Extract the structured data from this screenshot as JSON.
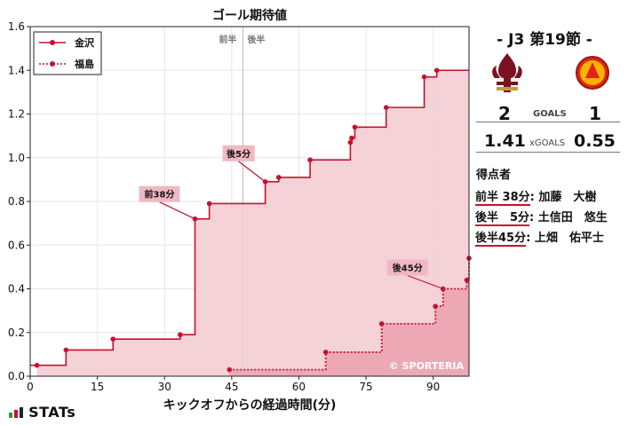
{
  "chart_data": {
    "type": "line",
    "title": "ゴール期待値",
    "xlabel": "キックオフからの経過時間(分)",
    "ylabel": "",
    "xlim": [
      0,
      98
    ],
    "ylim": [
      0,
      1.6
    ],
    "x_ticks": [
      0,
      15,
      30,
      45,
      60,
      75,
      90
    ],
    "y_ticks": [
      0.0,
      0.2,
      0.4,
      0.6,
      0.8,
      1.0,
      1.2,
      1.4,
      1.6
    ],
    "halftime_marker": {
      "x": 47.5,
      "labels": [
        "前半",
        "後半"
      ]
    },
    "grid": true,
    "legend_position": "top-left",
    "watermark": "© SPORTERIA",
    "series": [
      {
        "name": "金沢",
        "style": "solid",
        "color": "#c8102e",
        "fill": "#f3cdd3",
        "steps": [
          {
            "x": 1.5,
            "y": 0.05
          },
          {
            "x": 8,
            "y": 0.12
          },
          {
            "x": 18.5,
            "y": 0.17
          },
          {
            "x": 33.5,
            "y": 0.19
          },
          {
            "x": 36.8,
            "y": 0.72
          },
          {
            "x": 40,
            "y": 0.79
          },
          {
            "x": 52.5,
            "y": 0.89
          },
          {
            "x": 55.5,
            "y": 0.91
          },
          {
            "x": 62.5,
            "y": 0.99
          },
          {
            "x": 71.5,
            "y": 1.07
          },
          {
            "x": 71.8,
            "y": 1.09
          },
          {
            "x": 72.5,
            "y": 1.14
          },
          {
            "x": 79.5,
            "y": 1.23
          },
          {
            "x": 88,
            "y": 1.37
          },
          {
            "x": 90.8,
            "y": 1.4
          }
        ],
        "end": 98
      },
      {
        "name": "福島",
        "style": "dotted",
        "color": "#c8102e",
        "fill": "#eba1b0",
        "steps": [
          {
            "x": 44.5,
            "y": 0.03
          },
          {
            "x": 66,
            "y": 0.11
          },
          {
            "x": 78.5,
            "y": 0.24
          },
          {
            "x": 90.5,
            "y": 0.32
          },
          {
            "x": 92.2,
            "y": 0.4
          },
          {
            "x": 97.5,
            "y": 0.44
          },
          {
            "x": 98,
            "y": 0.54
          }
        ],
        "end": 98
      }
    ],
    "annotations": [
      {
        "label": "前38分",
        "x": 36.8,
        "y": 0.72,
        "series": "金沢"
      },
      {
        "label": "後5分",
        "x": 52.5,
        "y": 0.89,
        "series": "金沢"
      },
      {
        "label": "後45分",
        "x": 92.2,
        "y": 0.4,
        "series": "福島"
      }
    ]
  },
  "match": {
    "title": "-  J3 第19節  -",
    "home_score": "2",
    "away_score": "1",
    "goals_label": "GOALS",
    "home_xg": "1.41",
    "away_xg": "0.55",
    "xg_label": "xGOALS"
  },
  "scorers": {
    "title": "得点者",
    "items": [
      {
        "time": "前半 38分",
        "name": ": 加藤　大樹"
      },
      {
        "time": "後半　5分",
        "name": ": 土信田　悠生"
      },
      {
        "time": "後半45分",
        "name": ": 上畑　佑平士"
      }
    ]
  },
  "brand": {
    "name": "STATs"
  },
  "colors": {
    "accent": "#c8102e",
    "home_fill": "#f3cdd3",
    "away_fill": "#eba1b0",
    "label_bg": "#f0b8c2"
  }
}
